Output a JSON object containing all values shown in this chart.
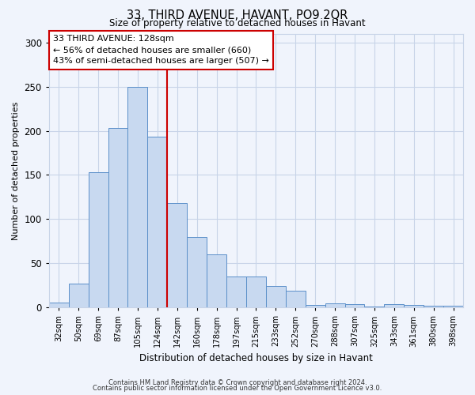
{
  "title": "33, THIRD AVENUE, HAVANT, PO9 2QR",
  "subtitle": "Size of property relative to detached houses in Havant",
  "xlabel": "Distribution of detached houses by size in Havant",
  "ylabel": "Number of detached properties",
  "bar_labels": [
    "32sqm",
    "50sqm",
    "69sqm",
    "87sqm",
    "105sqm",
    "124sqm",
    "142sqm",
    "160sqm",
    "178sqm",
    "197sqm",
    "215sqm",
    "233sqm",
    "252sqm",
    "270sqm",
    "288sqm",
    "307sqm",
    "325sqm",
    "343sqm",
    "361sqm",
    "380sqm",
    "398sqm"
  ],
  "bar_heights": [
    6,
    27,
    153,
    203,
    250,
    193,
    118,
    80,
    60,
    35,
    35,
    24,
    19,
    3,
    5,
    4,
    1,
    4,
    3,
    2,
    2
  ],
  "bar_color": "#c8d9f0",
  "bar_edge_color": "#5b8fc9",
  "vline_color": "#cc0000",
  "ylim": [
    0,
    310
  ],
  "yticks": [
    0,
    50,
    100,
    150,
    200,
    250,
    300
  ],
  "annotation_text": "33 THIRD AVENUE: 128sqm\n← 56% of detached houses are smaller (660)\n43% of semi-detached houses are larger (507) →",
  "annotation_box_edgecolor": "#cc0000",
  "footer1": "Contains HM Land Registry data © Crown copyright and database right 2024.",
  "footer2": "Contains public sector information licensed under the Open Government Licence v3.0.",
  "bg_color": "#f0f4fc",
  "grid_color": "#c8d4e8"
}
